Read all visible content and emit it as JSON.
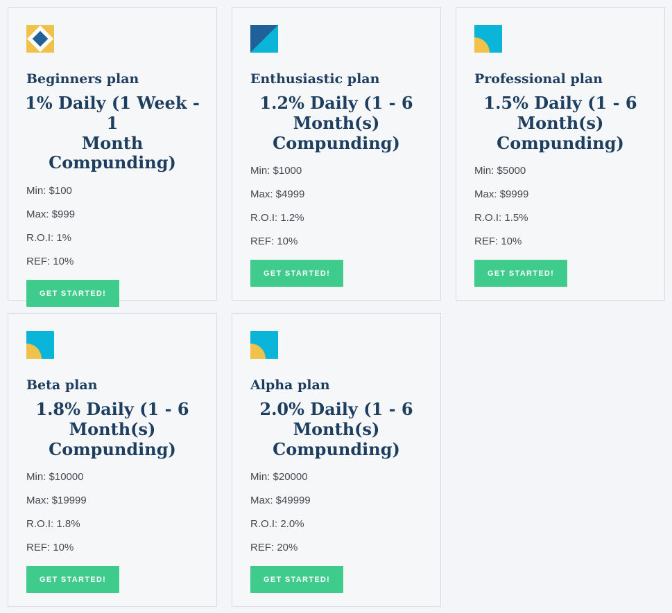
{
  "colors": {
    "navy": "#1d3e5f",
    "blue": "#20619a",
    "cyan": "#0ab5d9",
    "yellow": "#f0c24b",
    "green": "#3ecb8c"
  },
  "plans": [
    {
      "name": "Beginners plan",
      "icon": "diamond-icon",
      "heading": "1% Daily (1 Week - 1\nMonth Compunding)",
      "details": [
        "Min: $100",
        "Max: $999",
        "R.O.I: 1%",
        "REF: 10%"
      ],
      "button_label": "GET STARTED!"
    },
    {
      "name": "Enthusiastic plan",
      "icon": "split-triangle-icon",
      "heading": "1.2% Daily (1 - 6\nMonth(s)\nCompunding)",
      "details": [
        "Min: $1000",
        "Max: $4999",
        "R.O.I: 1.2%",
        "REF: 10%"
      ],
      "button_label": "GET STARTED!"
    },
    {
      "name": "Professional plan",
      "icon": "quarter-circle-icon",
      "heading": "1.5% Daily (1 - 6\nMonth(s)\nCompunding)",
      "details": [
        "Min: $5000",
        "Max: $9999",
        "R.O.I: 1.5%",
        "REF: 10%"
      ],
      "button_label": "GET STARTED!"
    },
    {
      "name": "Beta plan",
      "icon": "quarter-circle-icon",
      "heading": "1.8% Daily (1 - 6\nMonth(s)\nCompunding)",
      "details": [
        "Min: $10000",
        "Max: $19999",
        "R.O.I: 1.8%",
        "REF: 10%"
      ],
      "button_label": "GET STARTED!"
    },
    {
      "name": "Alpha plan",
      "icon": "quarter-circle-icon",
      "heading": "2.0% Daily (1 - 6\nMonth(s)\nCompunding)",
      "details": [
        "Min: $20000",
        "Max: $49999",
        "R.O.I: 2.0%",
        "REF: 20%"
      ],
      "button_label": "GET STARTED!"
    }
  ]
}
